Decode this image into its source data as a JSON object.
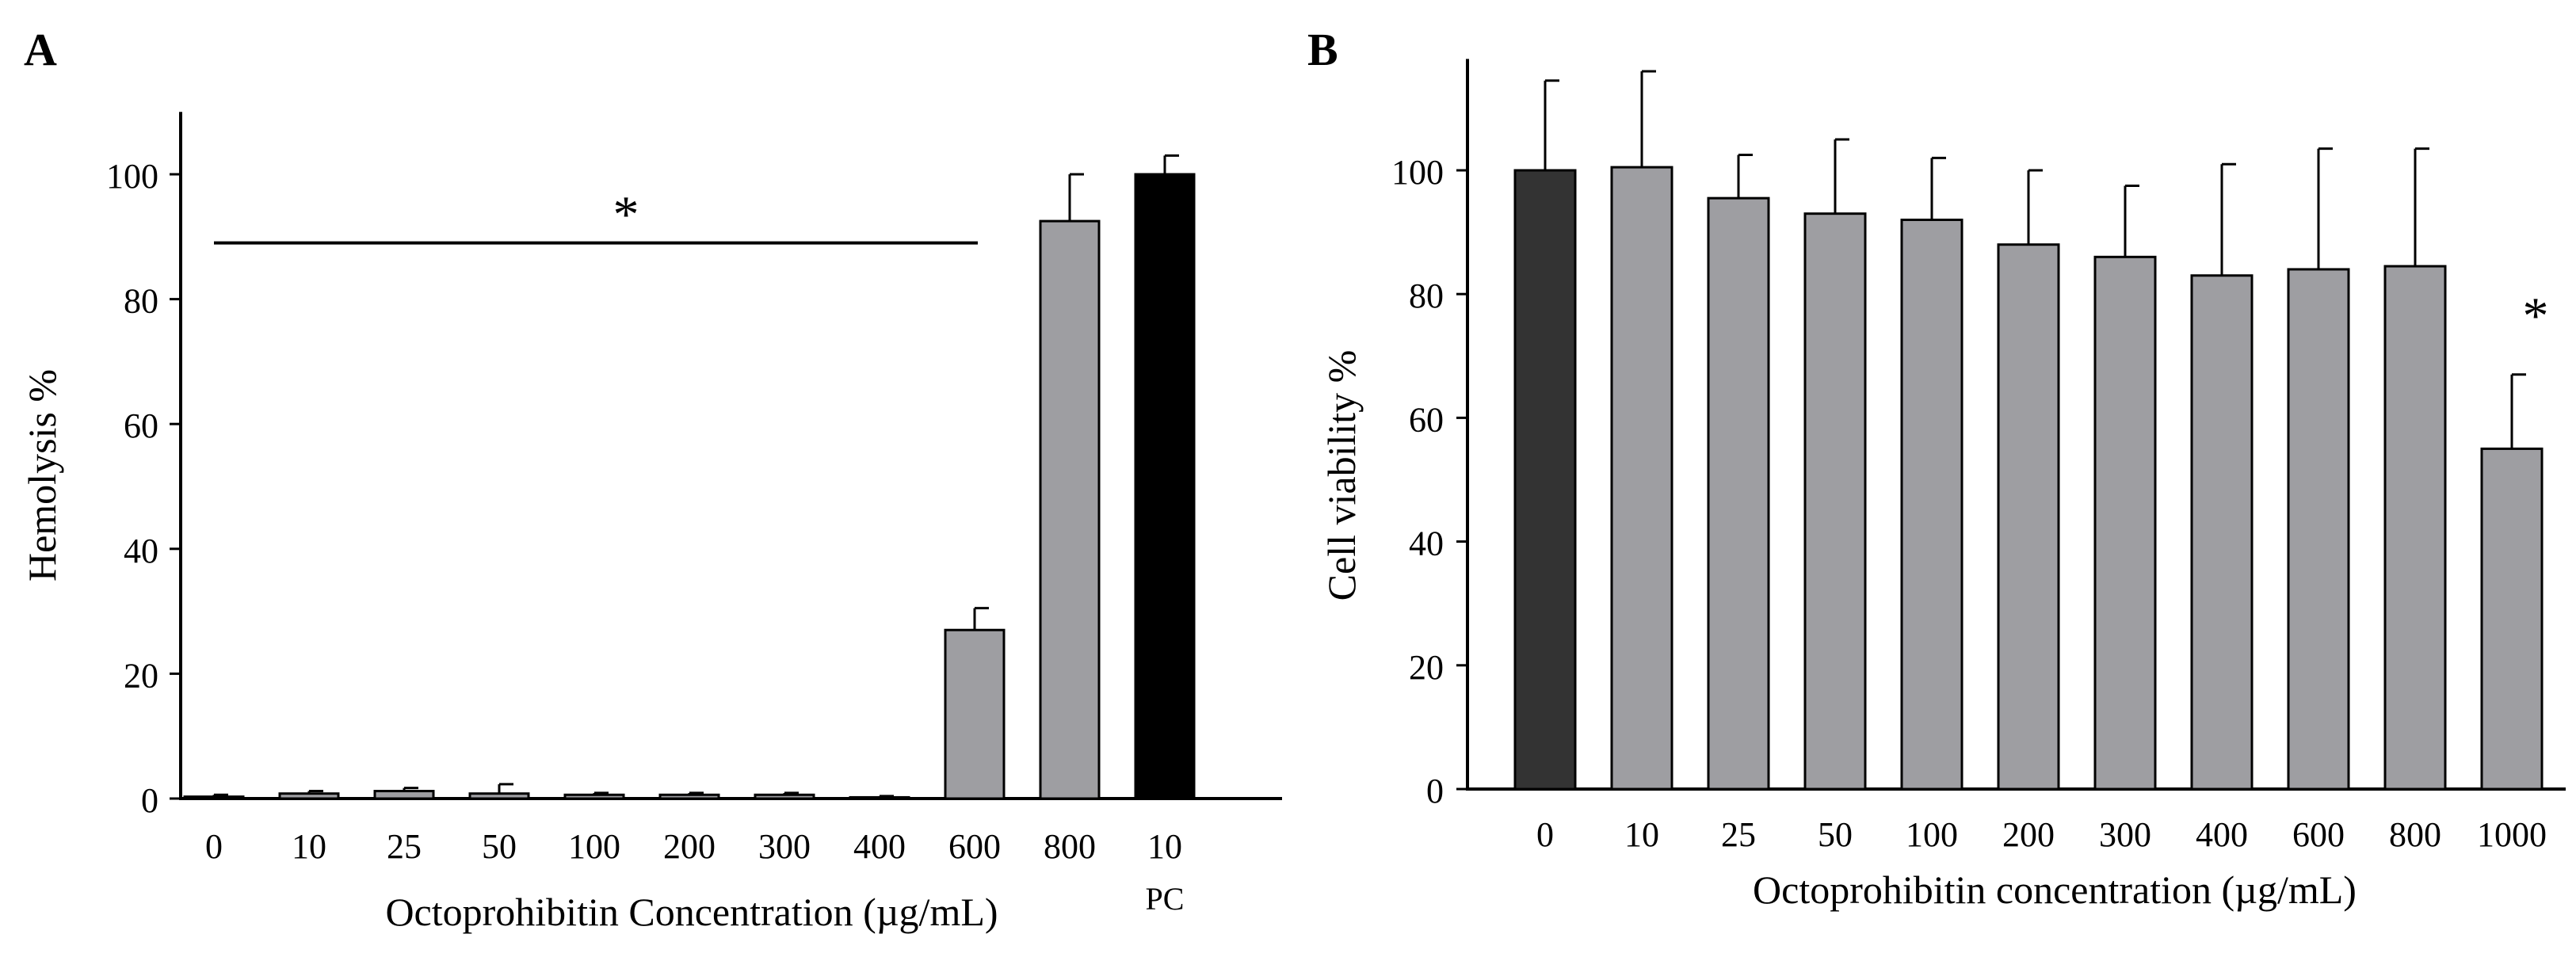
{
  "colors": {
    "gray_bar": "#9e9ea2",
    "black_bar": "#000000",
    "dark_bar": "#333333",
    "line": "#000000"
  },
  "chart_data": [
    {
      "panel": "A",
      "type": "bar",
      "categories": [
        "0",
        "10",
        "25",
        "50",
        "100",
        "200",
        "300",
        "400",
        "600",
        "800",
        "10"
      ],
      "category_sublabels": [
        "",
        "",
        "",
        "",
        "",
        "",
        "",
        "",
        "",
        "",
        "PC"
      ],
      "values": [
        0.3,
        0.8,
        1.2,
        0.8,
        0.6,
        0.6,
        0.6,
        0.2,
        27,
        92.5,
        100
      ],
      "errors": [
        0.3,
        0.4,
        0.5,
        1.5,
        0.3,
        0.3,
        0.3,
        0.2,
        3.5,
        7.5,
        3
      ],
      "bar_colors": [
        "gray",
        "gray",
        "gray",
        "gray",
        "gray",
        "gray",
        "gray",
        "gray",
        "gray",
        "gray",
        "black"
      ],
      "xlabel": "Octoprohibitin Concentration (µg/mL)",
      "ylabel": "Hemolysis %",
      "ylim": [
        0,
        110
      ],
      "yticks": [
        "0",
        "20",
        "40",
        "60",
        "80",
        "100"
      ],
      "significance": {
        "symbol": "*",
        "line_from_category": 0,
        "line_to_category": 8,
        "line_value": 89
      }
    },
    {
      "panel": "B",
      "type": "bar",
      "categories": [
        "0",
        "10",
        "25",
        "50",
        "100",
        "200",
        "300",
        "400",
        "600",
        "800",
        "1000"
      ],
      "values": [
        100,
        100.5,
        95.5,
        93,
        92,
        88,
        86,
        83,
        84,
        84.5,
        55
      ],
      "errors": [
        14.5,
        15.5,
        7,
        12,
        10,
        12,
        11.5,
        18,
        19.5,
        19,
        12
      ],
      "bar_colors": [
        "dark",
        "gray",
        "gray",
        "gray",
        "gray",
        "gray",
        "gray",
        "gray",
        "gray",
        "gray",
        "gray"
      ],
      "xlabel": "Octoprohibitin concentration (µg/mL)",
      "ylabel": "Cell viability %",
      "ylim": [
        0,
        118
      ],
      "yticks": [
        "0",
        "20",
        "40",
        "60",
        "80",
        "100"
      ],
      "significance": {
        "symbol": "*",
        "category": 10
      }
    }
  ]
}
